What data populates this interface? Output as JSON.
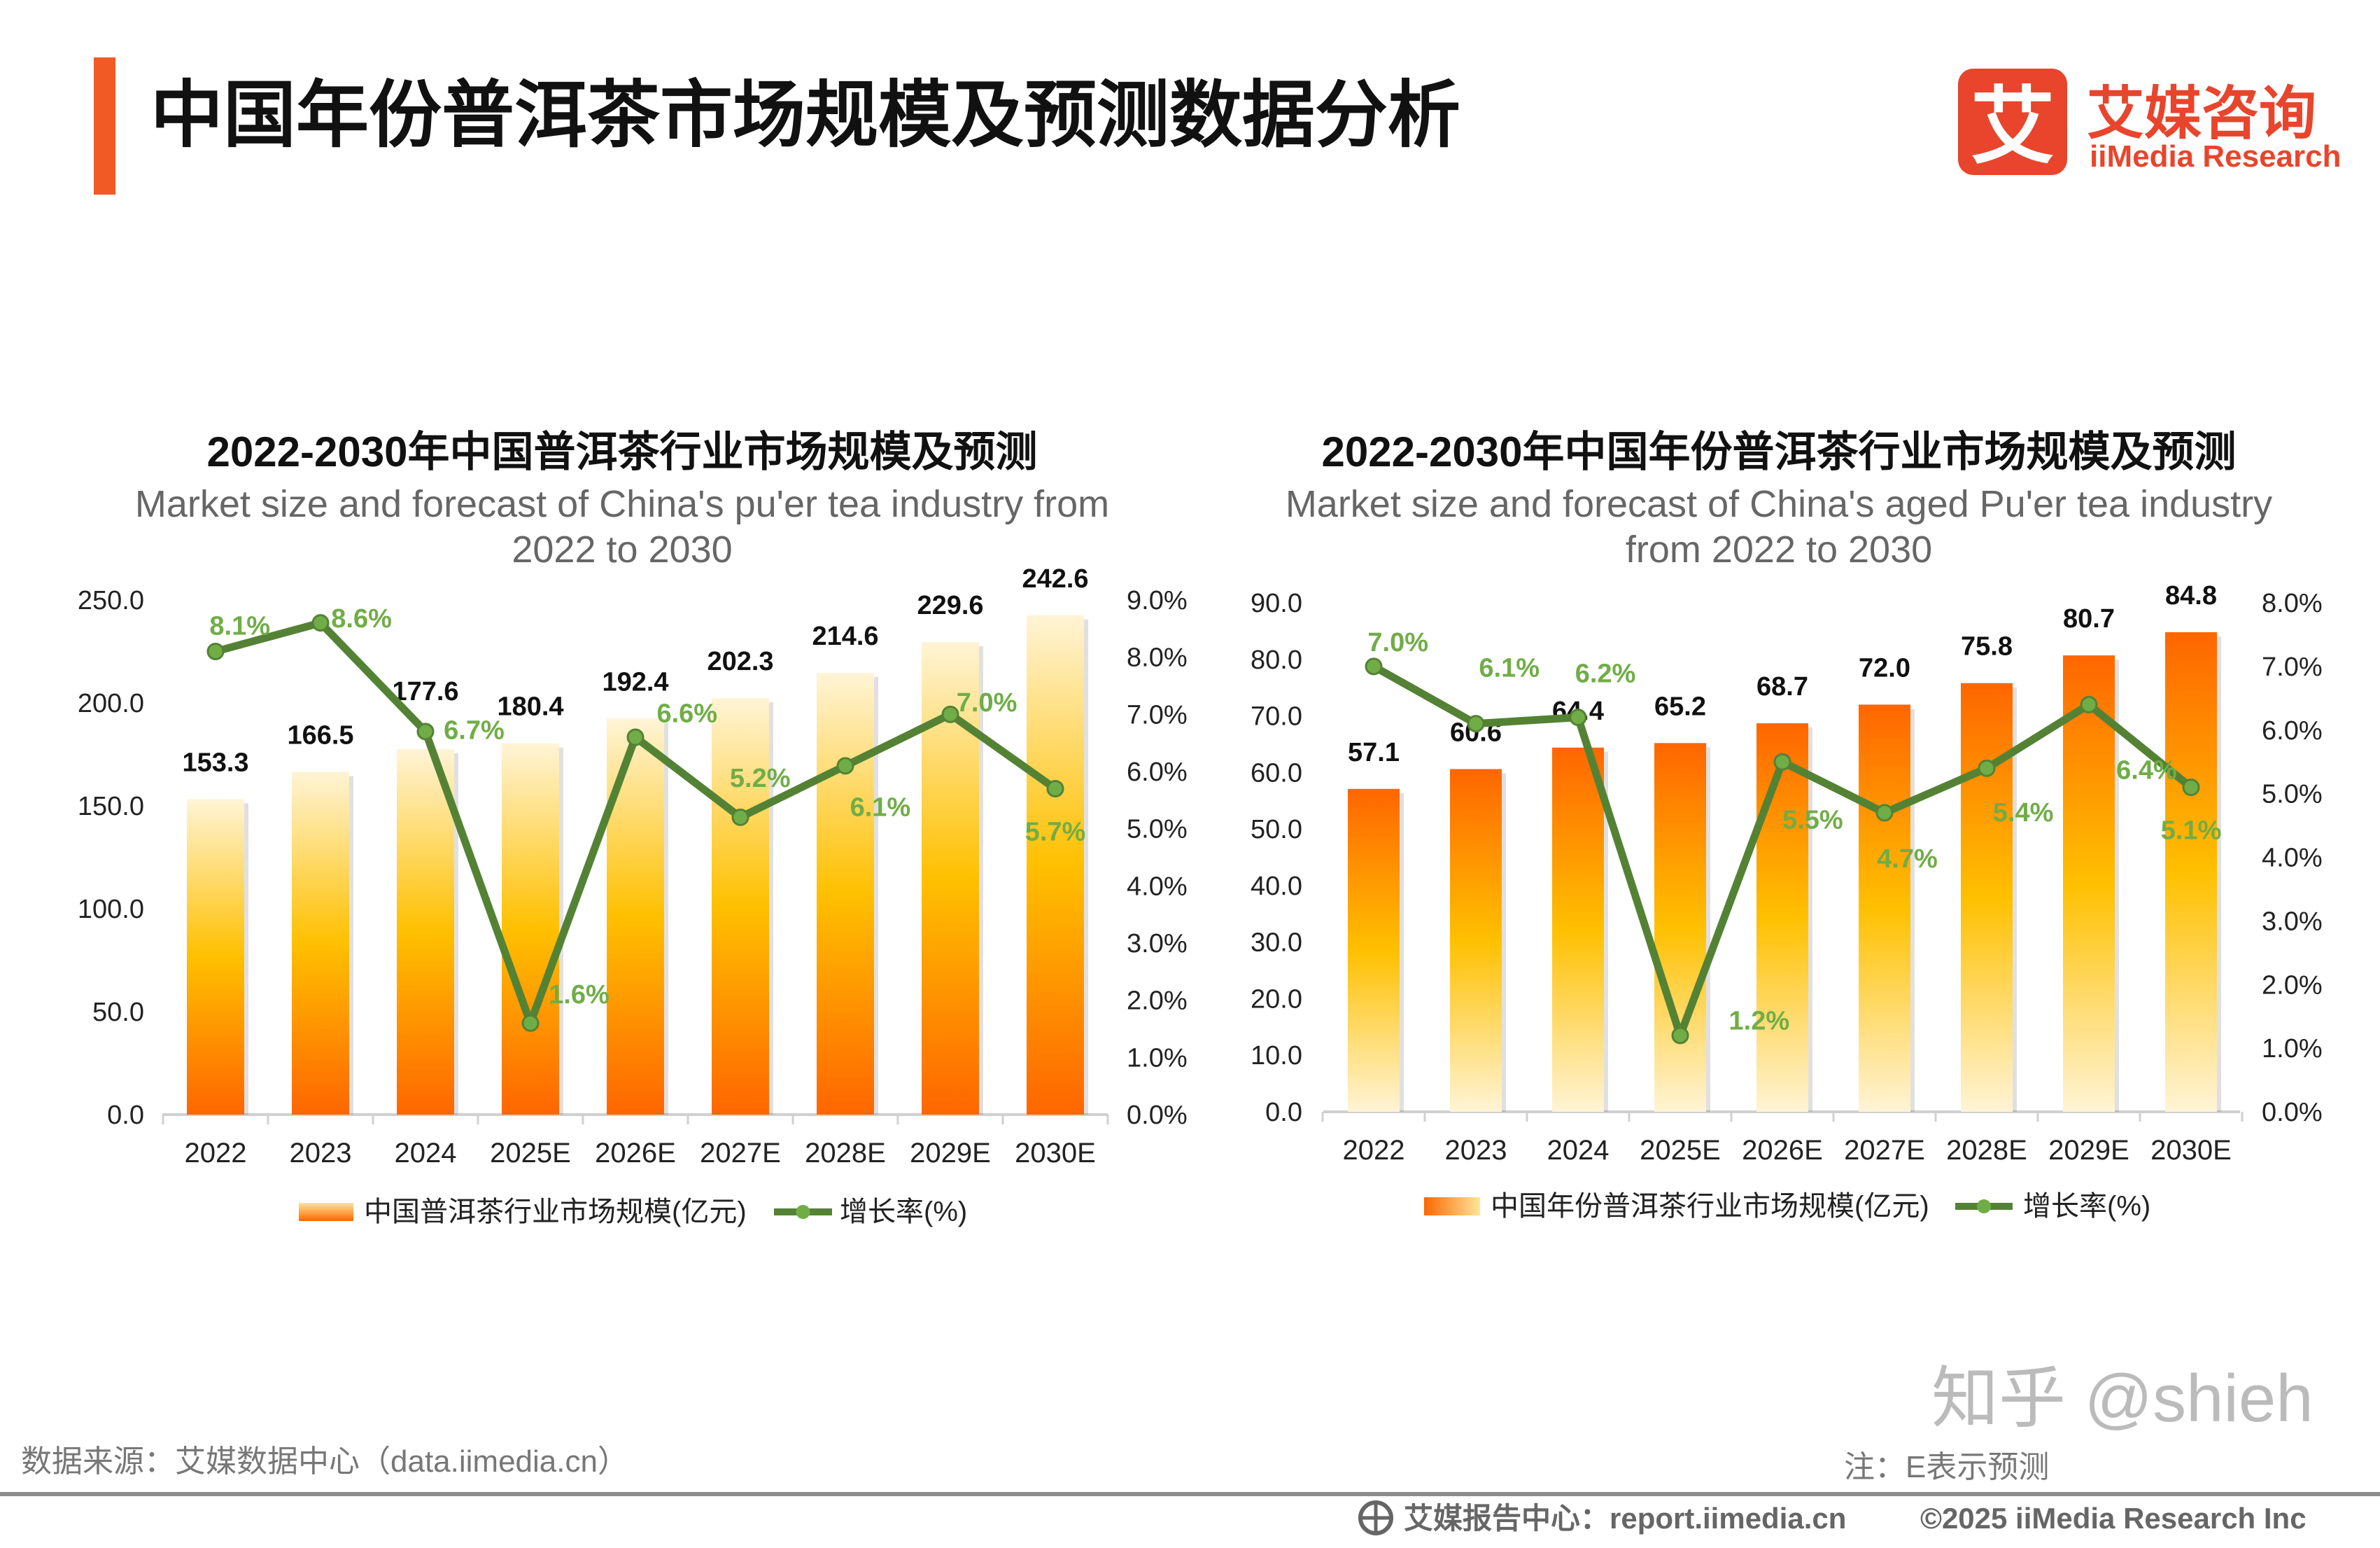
{
  "header": {
    "title": "中国年份普洱茶市场规模及预测数据分析",
    "logo_cn": "艾媒咨询",
    "logo_en": "iiMedia Research",
    "logo_glyph": "艾",
    "accent_color": "#f15a24"
  },
  "chart_data": [
    {
      "type": "bar+line",
      "title": "2022-2030年中国普洱茶行业市场规模及预测",
      "subtitle_lines": [
        "Market size and forecast of China's pu'er tea industry from",
        "2022 to 2030"
      ],
      "categories": [
        "2022",
        "2023",
        "2024",
        "2025E",
        "2026E",
        "2027E",
        "2028E",
        "2029E",
        "2030E"
      ],
      "series": [
        {
          "name": "中国普洱茶行业市场规模(亿元)",
          "type": "bar",
          "axis": "left",
          "values": [
            153.3,
            166.5,
            177.6,
            180.4,
            192.4,
            202.3,
            214.6,
            229.6,
            242.6
          ],
          "gradient": "light-top-orange-bottom"
        },
        {
          "name": "增长率(%)",
          "type": "line",
          "axis": "right",
          "values": [
            8.1,
            8.6,
            6.7,
            1.6,
            6.6,
            5.2,
            6.1,
            7.0,
            5.7
          ]
        }
      ],
      "value_labels": [
        "153.3",
        "166.5",
        "177.6",
        "180.4",
        "192.4",
        "202.3",
        "214.6",
        "229.6",
        "242.6"
      ],
      "growth_labels": [
        "8.1%",
        "8.6%",
        "6.7%",
        "1.6%",
        "6.6%",
        "5.2%",
        "6.1%",
        "7.0%",
        "5.7%"
      ],
      "ylim_left": [
        0,
        250
      ],
      "ylim_right": [
        0,
        9
      ],
      "yticks_left": [
        "0.0",
        "50.0",
        "100.0",
        "150.0",
        "200.0",
        "250.0"
      ],
      "yticks_right": [
        "0.0%",
        "1.0%",
        "2.0%",
        "3.0%",
        "4.0%",
        "5.0%",
        "6.0%",
        "7.0%",
        "8.0%",
        "9.0%"
      ],
      "grid": false,
      "legend": "bottom",
      "colors": {
        "bar_top": "#fff4d6",
        "bar_mid": "#ffc000",
        "bar_bottom": "#ff6600",
        "line": "#548235",
        "marker": "#70ad47",
        "growth_label": "#70ad47"
      }
    },
    {
      "type": "bar+line",
      "title": "2022-2030年中国年份普洱茶行业市场规模及预测",
      "subtitle_lines": [
        "Market size and forecast of China's aged Pu'er tea industry",
        "from 2022 to 2030"
      ],
      "categories": [
        "2022",
        "2023",
        "2024",
        "2025E",
        "2026E",
        "2027E",
        "2028E",
        "2029E",
        "2030E"
      ],
      "series": [
        {
          "name": "中国年份普洱茶行业市场规模(亿元)",
          "type": "bar",
          "axis": "left",
          "values": [
            57.1,
            60.6,
            64.4,
            65.2,
            68.7,
            72.0,
            75.8,
            80.7,
            84.8
          ],
          "gradient": "orange-top-light-bottom"
        },
        {
          "name": "增长率(%)",
          "type": "line",
          "axis": "right",
          "values": [
            7.0,
            6.1,
            6.2,
            1.2,
            5.5,
            4.7,
            5.4,
            6.4,
            5.1
          ]
        }
      ],
      "value_labels": [
        "57.1",
        "60.6",
        "64.4",
        "65.2",
        "68.7",
        "72.0",
        "75.8",
        "80.7",
        "84.8"
      ],
      "growth_labels": [
        "7.0%",
        "6.1%",
        "6.2%",
        "1.2%",
        "5.5%",
        "4.7%",
        "5.4%",
        "6.4%",
        "5.1%"
      ],
      "ylim_left": [
        0,
        90
      ],
      "ylim_right": [
        0,
        8
      ],
      "yticks_left": [
        "0.0",
        "10.0",
        "20.0",
        "30.0",
        "40.0",
        "50.0",
        "60.0",
        "70.0",
        "80.0",
        "90.0"
      ],
      "yticks_right": [
        "0.0%",
        "1.0%",
        "2.0%",
        "3.0%",
        "4.0%",
        "5.0%",
        "6.0%",
        "7.0%",
        "8.0%"
      ],
      "grid": false,
      "legend": "bottom",
      "colors": {
        "bar_top": "#ff6600",
        "bar_mid": "#ffc000",
        "bar_bottom": "#fff4d6",
        "line": "#548235",
        "marker": "#70ad47",
        "growth_label": "#70ad47"
      }
    }
  ],
  "footer": {
    "source": "数据来源：艾媒数据中心（data.iimedia.cn）",
    "note": "注：E表示预测",
    "watermark": "知乎 @shieh",
    "report_center": "艾媒报告中心：report.iimedia.cn",
    "copyright": "©2025  iiMedia Research  Inc"
  }
}
